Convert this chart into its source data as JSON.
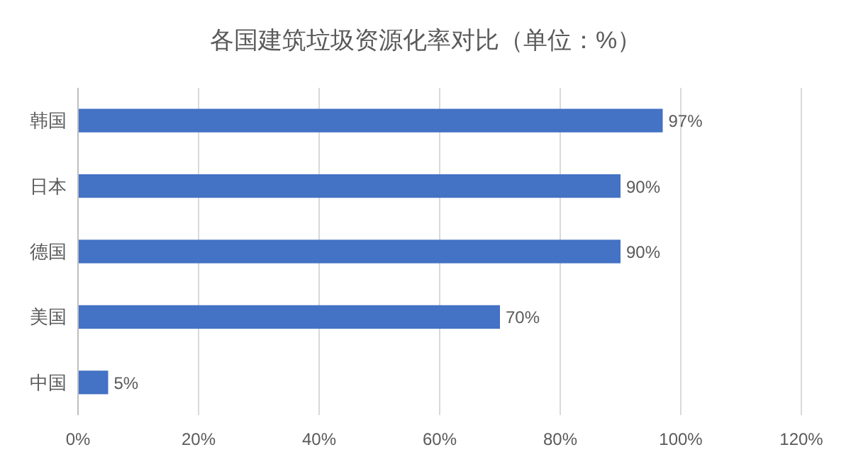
{
  "chart_data": {
    "type": "bar",
    "orientation": "horizontal",
    "title": "各国建筑垃圾资源化率对比（单位：%）",
    "categories": [
      "韩国",
      "日本",
      "德国",
      "美国",
      "中国"
    ],
    "values": [
      97,
      90,
      90,
      70,
      5
    ],
    "value_labels": [
      "97%",
      "90%",
      "90%",
      "70%",
      "5%"
    ],
    "color": "#4472c4",
    "xlim": [
      0,
      120
    ],
    "xticks": [
      {
        "value": 0,
        "label": "0%"
      },
      {
        "value": 20,
        "label": "20%"
      },
      {
        "value": 40,
        "label": "40%"
      },
      {
        "value": 60,
        "label": "60%"
      },
      {
        "value": 80,
        "label": "80%"
      },
      {
        "value": 100,
        "label": "100%"
      },
      {
        "value": 120,
        "label": "120%"
      }
    ],
    "grid": "x"
  }
}
